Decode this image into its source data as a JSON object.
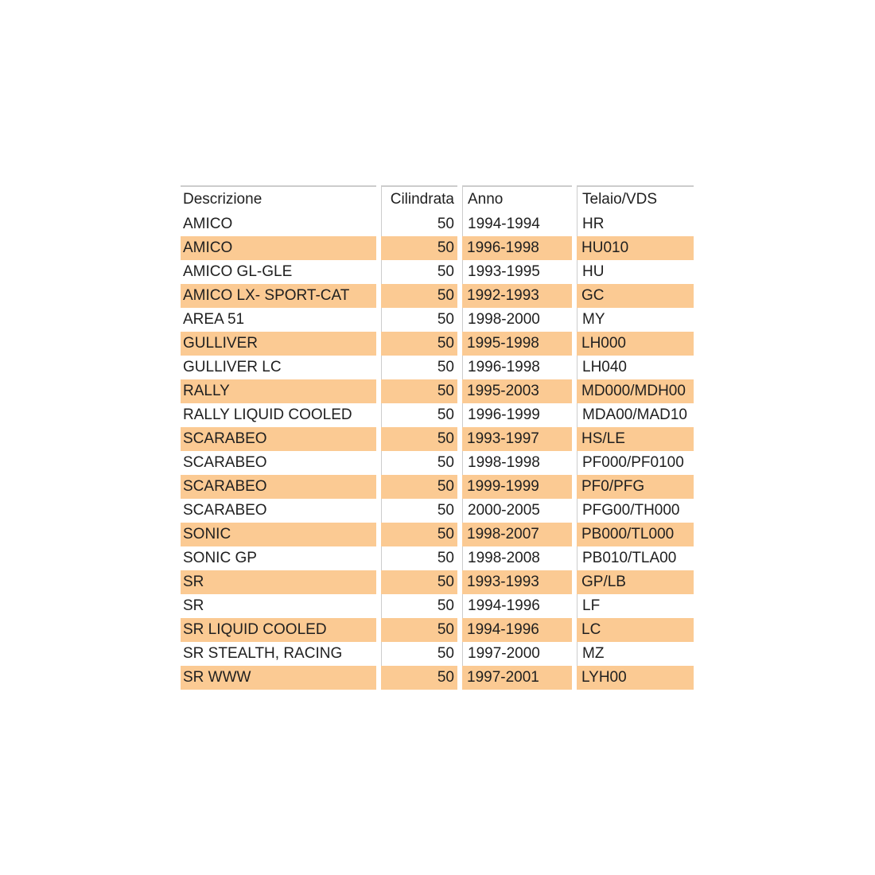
{
  "table": {
    "columns": [
      {
        "label": "Descrizione"
      },
      {
        "label": "Cilindrata"
      },
      {
        "label": "Anno"
      },
      {
        "label": "Telaio/VDS"
      }
    ],
    "rows": [
      {
        "descrizione": "AMICO",
        "cilindrata": "50",
        "anno": "1994-1994",
        "telaio": "HR"
      },
      {
        "descrizione": "AMICO",
        "cilindrata": "50",
        "anno": "1996-1998",
        "telaio": "HU010"
      },
      {
        "descrizione": "AMICO GL-GLE",
        "cilindrata": "50",
        "anno": "1993-1995",
        "telaio": "HU"
      },
      {
        "descrizione": "AMICO LX- SPORT-CAT",
        "cilindrata": "50",
        "anno": "1992-1993",
        "telaio": "GC"
      },
      {
        "descrizione": "AREA 51",
        "cilindrata": "50",
        "anno": "1998-2000",
        "telaio": "MY"
      },
      {
        "descrizione": "GULLIVER",
        "cilindrata": "50",
        "anno": "1995-1998",
        "telaio": "LH000"
      },
      {
        "descrizione": "GULLIVER LC",
        "cilindrata": "50",
        "anno": "1996-1998",
        "telaio": "LH040"
      },
      {
        "descrizione": "RALLY",
        "cilindrata": "50",
        "anno": "1995-2003",
        "telaio": "MD000/MDH00"
      },
      {
        "descrizione": "RALLY LIQUID COOLED",
        "cilindrata": "50",
        "anno": "1996-1999",
        "telaio": "MDA00/MAD10"
      },
      {
        "descrizione": "SCARABEO",
        "cilindrata": "50",
        "anno": "1993-1997",
        "telaio": "HS/LE"
      },
      {
        "descrizione": "SCARABEO",
        "cilindrata": "50",
        "anno": "1998-1998",
        "telaio": "PF000/PF0100"
      },
      {
        "descrizione": "SCARABEO",
        "cilindrata": "50",
        "anno": "1999-1999",
        "telaio": "PF0/PFG"
      },
      {
        "descrizione": "SCARABEO",
        "cilindrata": "50",
        "anno": "2000-2005",
        "telaio": "PFG00/TH000"
      },
      {
        "descrizione": "SONIC",
        "cilindrata": "50",
        "anno": "1998-2007",
        "telaio": "PB000/TL000"
      },
      {
        "descrizione": "SONIC GP",
        "cilindrata": "50",
        "anno": "1998-2008",
        "telaio": "PB010/TLA00"
      },
      {
        "descrizione": "SR",
        "cilindrata": "50",
        "anno": "1993-1993",
        "telaio": "GP/LB"
      },
      {
        "descrizione": "SR",
        "cilindrata": "50",
        "anno": "1994-1996",
        "telaio": "LF"
      },
      {
        "descrizione": "SR LIQUID COOLED",
        "cilindrata": "50",
        "anno": "1994-1996",
        "telaio": "LC"
      },
      {
        "descrizione": "SR STEALTH, RACING",
        "cilindrata": "50",
        "anno": "1997-2000",
        "telaio": "MZ"
      },
      {
        "descrizione": "SR WWW",
        "cilindrata": "50",
        "anno": "1997-2001",
        "telaio": "LYH00"
      }
    ],
    "colors": {
      "row_highlight": "#fbca93",
      "row_default": "#ffffff",
      "separator": "#cccccc",
      "text": "#1f1f1f"
    }
  }
}
